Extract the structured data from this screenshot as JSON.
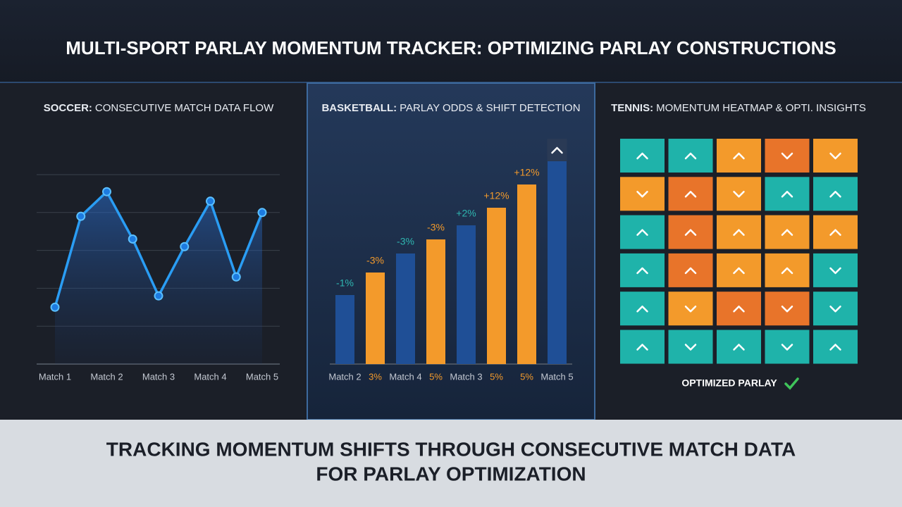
{
  "header": {
    "title": "MULTI-SPORT PARLAY MOMENTUM TRACKER: OPTIMIZING PARLAY CONSTRUCTIONS"
  },
  "chart_data": [
    {
      "type": "line",
      "panel_label": "SOCCER:",
      "title": "CONSECUTIVE MATCH DATA FLOW",
      "categories": [
        "Match 1",
        null,
        "Match 2",
        null,
        "Match 3",
        null,
        "Match 4",
        null,
        "Match 5"
      ],
      "values": [
        1.5,
        3.9,
        4.55,
        3.3,
        1.8,
        3.1,
        4.3,
        2.3,
        4.0
      ],
      "color": "#2a9df4",
      "ylim": [
        0,
        5
      ],
      "yticks": [
        1,
        2,
        3,
        4,
        5
      ],
      "grid": true
    },
    {
      "type": "bar",
      "panel_label": "BASKETBALL:",
      "title": "PARLAY ODDS & SHIFT DETECTION",
      "categories": [
        "Match 2",
        "3%",
        "Match 4",
        "5%",
        "Match 3",
        "5%",
        "5%",
        "Match 5"
      ],
      "values": [
        98,
        130,
        157,
        177,
        197,
        222,
        255,
        288
      ],
      "annotations": [
        "-1%",
        "-3%",
        "-3%",
        "-3%",
        "+2%",
        "+12%",
        "+12%",
        null
      ],
      "colors": [
        "#1f4f96",
        "#f39a2b",
        "#1f4f96",
        "#f39a2b",
        "#1f4f96",
        "#f39a2b",
        "#f39a2b",
        "#1f4f96"
      ],
      "ylim": [
        0,
        300
      ]
    },
    {
      "type": "heatmap",
      "panel_label": "TENNIS:",
      "title": "MOMENTUM HEATMAP & OPTI. INSIGHTS",
      "rows": [
        [
          {
            "dir": "up",
            "color": "#1fb3aa"
          },
          {
            "dir": "up",
            "color": "#1fb3aa"
          },
          {
            "dir": "up",
            "color": "#f39a2b"
          },
          {
            "dir": "down",
            "color": "#e8742a"
          },
          {
            "dir": "down",
            "color": "#f39a2b"
          }
        ],
        [
          {
            "dir": "down",
            "color": "#f39a2b"
          },
          {
            "dir": "up",
            "color": "#e8742a"
          },
          {
            "dir": "down",
            "color": "#f39a2b"
          },
          {
            "dir": "up",
            "color": "#1fb3aa"
          },
          {
            "dir": "up",
            "color": "#1fb3aa"
          }
        ],
        [
          {
            "dir": "up",
            "color": "#1fb3aa"
          },
          {
            "dir": "up",
            "color": "#e8742a"
          },
          {
            "dir": "up",
            "color": "#f39a2b"
          },
          {
            "dir": "up",
            "color": "#f39a2b"
          },
          {
            "dir": "up",
            "color": "#f39a2b"
          }
        ],
        [
          {
            "dir": "up",
            "color": "#1fb3aa"
          },
          {
            "dir": "up",
            "color": "#e8742a"
          },
          {
            "dir": "up",
            "color": "#f39a2b"
          },
          {
            "dir": "up",
            "color": "#f39a2b"
          },
          {
            "dir": "down",
            "color": "#1fb3aa"
          }
        ],
        [
          {
            "dir": "up",
            "color": "#1fb3aa"
          },
          {
            "dir": "down",
            "color": "#f39a2b"
          },
          {
            "dir": "up",
            "color": "#e8742a"
          },
          {
            "dir": "down",
            "color": "#e8742a"
          },
          {
            "dir": "down",
            "color": "#1fb3aa"
          }
        ],
        [
          {
            "dir": "up",
            "color": "#1fb3aa"
          },
          {
            "dir": "down",
            "color": "#1fb3aa"
          },
          {
            "dir": "up",
            "color": "#1fb3aa"
          },
          {
            "dir": "down",
            "color": "#1fb3aa"
          },
          {
            "dir": "up",
            "color": "#1fb3aa"
          }
        ]
      ],
      "footer": "OPTIMIZED PARLAY"
    }
  ],
  "footer": {
    "line1": "TRACKING MOMENTUM SHIFTS THROUGH CONSECUTIVE MATCH DATA",
    "line2": "FOR PARLAY OPTIMIZATION"
  }
}
